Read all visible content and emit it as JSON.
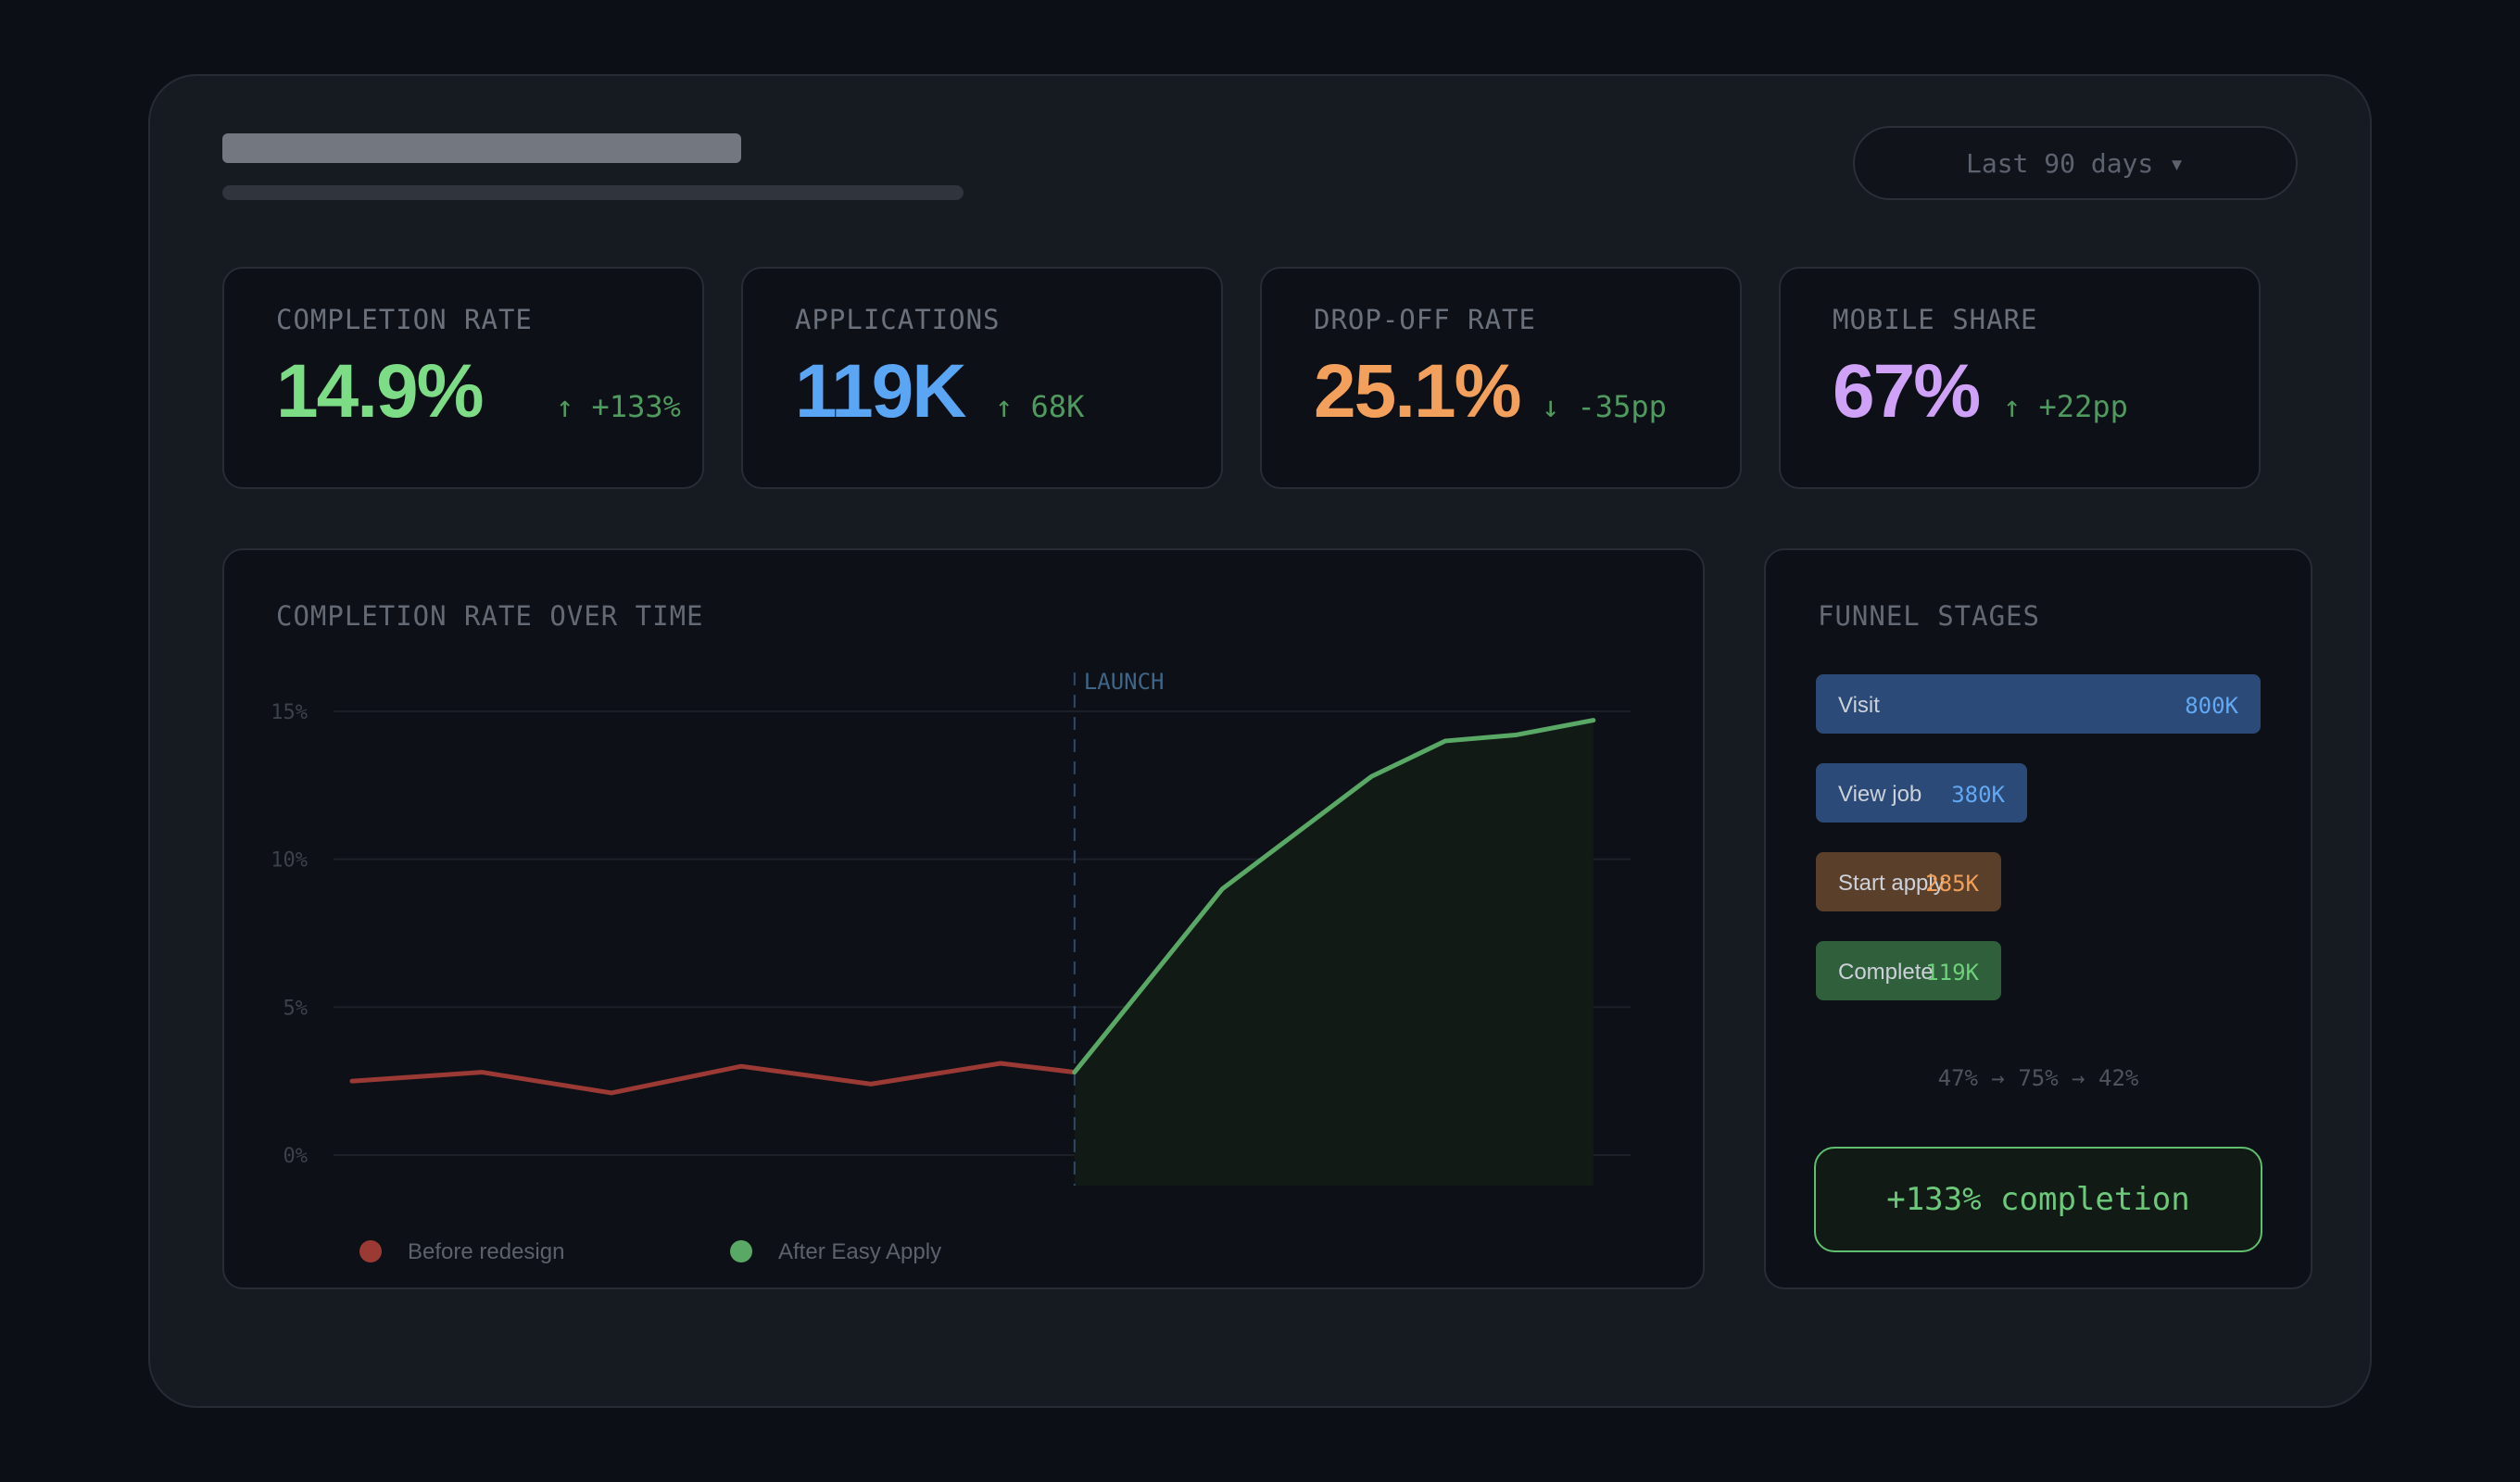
{
  "header": {
    "date_range": "Last 90 days ▾"
  },
  "kpis": [
    {
      "label": "COMPLETION RATE",
      "value": "14.9%",
      "delta": "↑ +133%",
      "color": "#7ddc86"
    },
    {
      "label": "APPLICATIONS",
      "value": "119K",
      "delta": "↑ 68K",
      "color": "#5aa6f5"
    },
    {
      "label": "DROP-OFF RATE",
      "value": "25.1%",
      "delta": "↓ -35pp",
      "color": "#f3a05c"
    },
    {
      "label": "MOBILE SHARE",
      "value": "67%",
      "delta": "↑ +22pp",
      "color": "#cfa2f7"
    }
  ],
  "line_chart": {
    "title": "COMPLETION RATE OVER TIME",
    "annotation": "LAUNCH"
  },
  "funnel": {
    "title": "FUNNEL STAGES",
    "stages": [
      {
        "label": "Visit",
        "value": "800K",
        "count": 800000,
        "bg": "#2b4a77",
        "fg": "#62a8f2"
      },
      {
        "label": "View job",
        "value": "380K",
        "count": 380000,
        "bg": "#2b4a77",
        "fg": "#62a8f2"
      },
      {
        "label": "Start apply",
        "value": "285K",
        "count": 285000,
        "bg": "#5a3f2b",
        "fg": "#f2a058"
      },
      {
        "label": "Complete",
        "value": "119K",
        "count": 119000,
        "bg": "#2f5f3b",
        "fg": "#6fd07c"
      }
    ],
    "conversion": "47% → 75% → 42%",
    "summary": "+133% completion"
  },
  "chart_data": [
    {
      "type": "line",
      "title": "COMPLETION RATE OVER TIME",
      "ylim": [
        0,
        15
      ],
      "y_ticks": [
        "0%",
        "5%",
        "10%",
        "15%"
      ],
      "grid": true,
      "annotation": "LAUNCH",
      "series": [
        {
          "name": "Before redesign",
          "color": "#9b3a34",
          "points": [
            [
              0,
              2.5
            ],
            [
              1,
              2.8
            ],
            [
              2,
              2.1
            ],
            [
              3,
              3.0
            ],
            [
              4,
              2.4
            ],
            [
              5,
              3.1
            ],
            [
              5.57,
              2.8
            ]
          ]
        },
        {
          "name": "After Easy Apply",
          "color": "#5aa866",
          "points": [
            [
              5.57,
              2.8
            ],
            [
              6.71,
              9.0
            ],
            [
              7.86,
              12.8
            ],
            [
              8.43,
              14.0
            ],
            [
              8.97,
              14.2
            ],
            [
              9.57,
              14.7
            ]
          ]
        }
      ],
      "legend_position": "bottom-left"
    },
    {
      "type": "bar",
      "title": "FUNNEL STAGES",
      "categories": [
        "Visit",
        "View job",
        "Start apply",
        "Complete"
      ],
      "values": [
        800000,
        380000,
        285000,
        119000
      ]
    }
  ]
}
